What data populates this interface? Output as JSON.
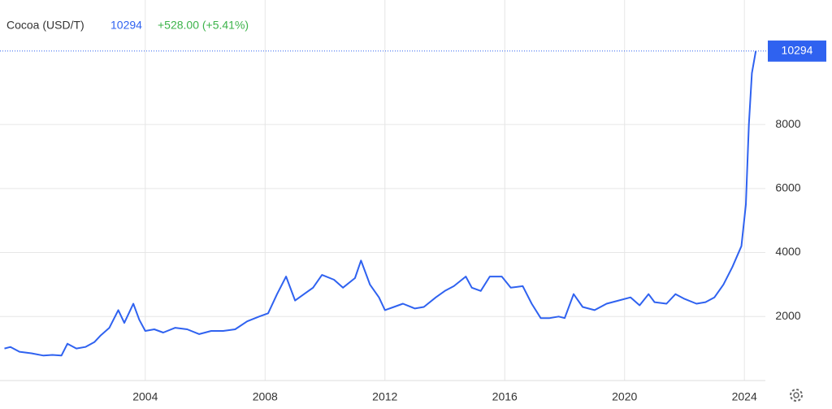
{
  "chart_data": {
    "type": "line",
    "title": "Cocoa (USD/T)",
    "last_price": 10294,
    "change_label": "+528.00 (+5.41%)",
    "color": "#2f62f0",
    "grid": true,
    "x": [
      1999.3,
      1999.5,
      1999.8,
      2000.2,
      2000.6,
      2000.9,
      2001.2,
      2001.4,
      2001.7,
      2002.0,
      2002.3,
      2002.5,
      2002.8,
      2003.1,
      2003.3,
      2003.6,
      2003.8,
      2004.0,
      2004.3,
      2004.6,
      2005.0,
      2005.4,
      2005.8,
      2006.2,
      2006.6,
      2007.0,
      2007.4,
      2007.8,
      2008.1,
      2008.4,
      2008.7,
      2009.0,
      2009.3,
      2009.6,
      2009.9,
      2010.3,
      2010.6,
      2011.0,
      2011.2,
      2011.5,
      2011.8,
      2012.0,
      2012.3,
      2012.6,
      2013.0,
      2013.3,
      2013.7,
      2014.0,
      2014.3,
      2014.7,
      2014.9,
      2015.2,
      2015.5,
      2015.9,
      2016.2,
      2016.6,
      2016.9,
      2017.2,
      2017.5,
      2017.8,
      2018.0,
      2018.3,
      2018.6,
      2019.0,
      2019.4,
      2019.8,
      2020.2,
      2020.5,
      2020.8,
      2021.0,
      2021.4,
      2021.7,
      2022.0,
      2022.4,
      2022.7,
      2023.0,
      2023.3,
      2023.6,
      2023.9,
      2024.05,
      2024.15,
      2024.25,
      2024.38
    ],
    "values": [
      1000,
      1050,
      900,
      850,
      780,
      800,
      780,
      1150,
      1000,
      1050,
      1200,
      1400,
      1650,
      2200,
      1800,
      2400,
      1900,
      1550,
      1600,
      1500,
      1650,
      1600,
      1450,
      1550,
      1550,
      1600,
      1850,
      2000,
      2100,
      2700,
      3250,
      2500,
      2700,
      2900,
      3300,
      3150,
      2900,
      3200,
      3750,
      3000,
      2600,
      2200,
      2300,
      2400,
      2250,
      2300,
      2600,
      2800,
      2950,
      3250,
      2900,
      2800,
      3250,
      3250,
      2900,
      2950,
      2400,
      1950,
      1950,
      2000,
      1950,
      2700,
      2300,
      2200,
      2400,
      2500,
      2600,
      2350,
      2700,
      2450,
      2400,
      2700,
      2550,
      2400,
      2450,
      2600,
      3000,
      3550,
      4200,
      5500,
      8000,
      9600,
      10294
    ],
    "xlim": [
      1999.15,
      2024.7
    ],
    "ylim": [
      0,
      11000
    ],
    "xticks": [
      2004,
      2008,
      2012,
      2016,
      2020,
      2024
    ],
    "yticks": [
      2000,
      4000,
      6000,
      8000
    ]
  }
}
